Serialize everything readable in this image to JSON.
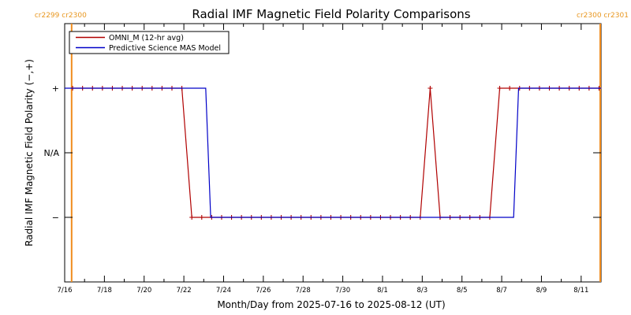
{
  "chart_data": {
    "type": "line",
    "title": "Radial IMF Magnetic Field Polarity Comparisons",
    "xlabel": "Month/Day from 2025-07-16 to 2025-08-12 (UT)",
    "ylabel": "Radial IMF Magnetic Field Polarity (−,+)",
    "x_range": [
      0,
      27
    ],
    "y_range": [
      -2,
      2
    ],
    "x_ticks": [
      {
        "day": 0,
        "label": "7/16"
      },
      {
        "day": 2,
        "label": "7/18"
      },
      {
        "day": 4,
        "label": "7/20"
      },
      {
        "day": 6,
        "label": "7/22"
      },
      {
        "day": 8,
        "label": "7/24"
      },
      {
        "day": 10,
        "label": "7/26"
      },
      {
        "day": 12,
        "label": "7/28"
      },
      {
        "day": 14,
        "label": "7/30"
      },
      {
        "day": 16,
        "label": "8/1"
      },
      {
        "day": 18,
        "label": "8/3"
      },
      {
        "day": 20,
        "label": "8/5"
      },
      {
        "day": 22,
        "label": "8/7"
      },
      {
        "day": 24,
        "label": "8/9"
      },
      {
        "day": 26,
        "label": "8/11"
      }
    ],
    "y_ticks": [
      {
        "value": 1,
        "label": "+"
      },
      {
        "value": 0,
        "label": "N/A"
      },
      {
        "value": -1,
        "label": "−"
      }
    ],
    "carrington_rotations": [
      {
        "day": 0.35,
        "label": "cr2299 cr2300",
        "side": "left"
      },
      {
        "day": 26.96,
        "label": "cr2300 cr2301",
        "side": "right"
      }
    ],
    "legend_position": "top-left",
    "series": [
      {
        "name": "OMNI_M (12-hr avg)",
        "color": "#b00000",
        "markers": true,
        "points": [
          [
            0.4,
            1
          ],
          [
            0.9,
            1
          ],
          [
            1.4,
            1
          ],
          [
            1.9,
            1
          ],
          [
            2.4,
            1
          ],
          [
            2.9,
            1
          ],
          [
            3.4,
            1
          ],
          [
            3.9,
            1
          ],
          [
            4.4,
            1
          ],
          [
            4.9,
            1
          ],
          [
            5.4,
            1
          ],
          [
            5.9,
            1
          ],
          [
            6.4,
            -1
          ],
          [
            6.9,
            -1
          ],
          [
            7.4,
            -1
          ],
          [
            7.9,
            -1
          ],
          [
            8.4,
            -1
          ],
          [
            8.9,
            -1
          ],
          [
            9.4,
            -1
          ],
          [
            9.9,
            -1
          ],
          [
            10.4,
            -1
          ],
          [
            10.9,
            -1
          ],
          [
            11.4,
            -1
          ],
          [
            11.9,
            -1
          ],
          [
            12.4,
            -1
          ],
          [
            12.9,
            -1
          ],
          [
            13.4,
            -1
          ],
          [
            13.9,
            -1
          ],
          [
            14.4,
            -1
          ],
          [
            14.9,
            -1
          ],
          [
            15.4,
            -1
          ],
          [
            15.9,
            -1
          ],
          [
            16.4,
            -1
          ],
          [
            16.9,
            -1
          ],
          [
            17.4,
            -1
          ],
          [
            17.9,
            -1
          ],
          [
            18.4,
            1
          ],
          [
            18.9,
            -1
          ],
          [
            19.4,
            -1
          ],
          [
            19.9,
            -1
          ],
          [
            20.4,
            -1
          ],
          [
            20.9,
            -1
          ],
          [
            21.4,
            -1
          ],
          [
            21.9,
            1
          ],
          [
            22.4,
            1
          ],
          [
            22.9,
            1
          ],
          [
            23.4,
            1
          ],
          [
            23.9,
            1
          ],
          [
            24.4,
            1
          ],
          [
            24.9,
            1
          ],
          [
            25.4,
            1
          ],
          [
            25.9,
            1
          ],
          [
            26.4,
            1
          ],
          [
            26.9,
            1
          ]
        ]
      },
      {
        "name": "Predictive Science MAS Model",
        "color": "#0000c8",
        "markers": false,
        "points": [
          [
            0,
            1
          ],
          [
            7.1,
            1
          ],
          [
            7.35,
            -1
          ],
          [
            22.6,
            -1
          ],
          [
            22.85,
            1
          ],
          [
            27,
            1
          ]
        ]
      }
    ]
  }
}
